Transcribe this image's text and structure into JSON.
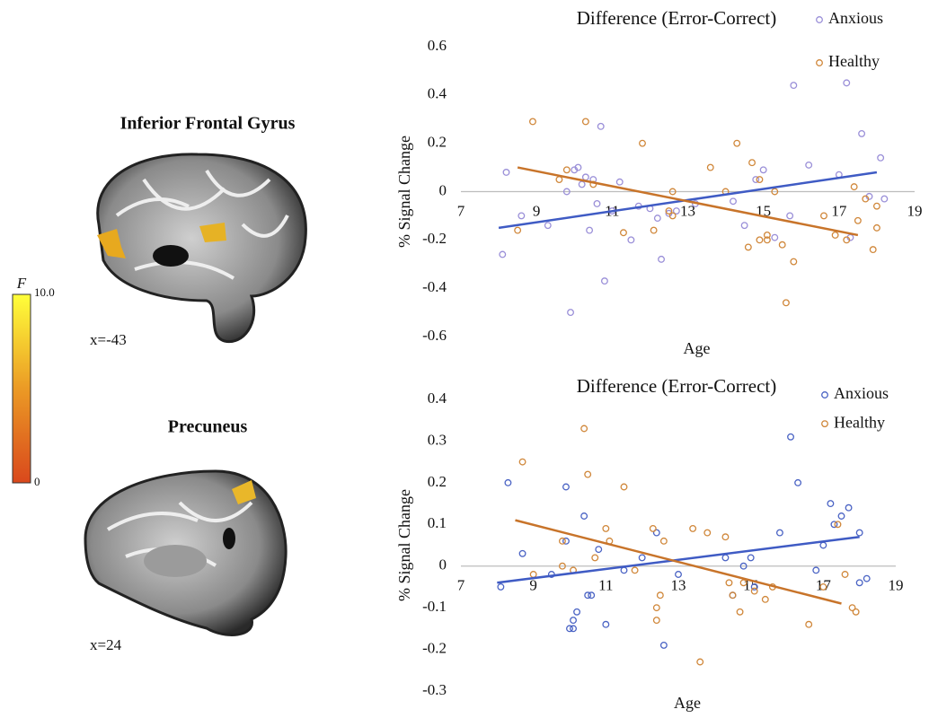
{
  "panels": [
    {
      "title": "Inferior Frontal Gyrus",
      "coord": "x=-43"
    },
    {
      "title": "Precuneus",
      "coord": "x=24"
    }
  ],
  "colorbar": {
    "label": "F",
    "max": "10.0",
    "min": "0"
  },
  "chart_data": [
    {
      "type": "scatter",
      "title": "Difference (Error-Correct)",
      "x_label": "Age",
      "y_label": "% Signal Change",
      "xlim": [
        7,
        19
      ],
      "xticks": [
        7,
        9,
        11,
        13,
        15,
        17,
        19
      ],
      "ylim": [
        -0.6,
        0.6
      ],
      "yticks": [
        0.6,
        0.4,
        0.2,
        0,
        -0.2,
        -0.4,
        -0.6
      ],
      "legend": "upper right",
      "series": [
        {
          "name": "Anxious",
          "color": "#9a8fd8",
          "x": [
            8.1,
            8.2,
            8.6,
            9.3,
            9.8,
            9.9,
            10,
            10.1,
            10.2,
            10.3,
            10.4,
            10.5,
            10.6,
            10.7,
            10.8,
            11,
            11.2,
            11.5,
            11.7,
            12,
            12.2,
            12.3,
            12.5,
            12.7,
            13.2,
            14.2,
            14.5,
            14.8,
            15,
            15.3,
            15.7,
            15.8,
            16.2,
            17,
            17.2,
            17.3,
            17.6,
            17.8,
            18.1,
            18.2
          ],
          "values": [
            -0.26,
            0.08,
            -0.1,
            -0.14,
            0.0,
            -0.5,
            0.09,
            0.1,
            0.03,
            0.06,
            -0.16,
            0.05,
            -0.05,
            0.27,
            -0.37,
            -0.08,
            0.04,
            -0.2,
            -0.06,
            -0.07,
            -0.11,
            -0.28,
            -0.09,
            -0.08,
            -0.05,
            -0.04,
            -0.14,
            0.05,
            0.09,
            -0.19,
            -0.1,
            0.44,
            0.11,
            0.07,
            0.45,
            -0.19,
            0.24,
            -0.02,
            0.14,
            -0.03
          ]
        },
        {
          "name": "Healthy",
          "color": "#d0873a",
          "x": [
            8.5,
            8.9,
            9.6,
            9.8,
            10.3,
            10.5,
            11.3,
            11.8,
            12.1,
            12.5,
            12.6,
            12.6,
            13.6,
            14,
            14.3,
            14.6,
            14.7,
            14.9,
            14.9,
            15.1,
            15.1,
            15.3,
            15.5,
            15.6,
            15.8,
            16.6,
            16.9,
            17.2,
            17.4,
            17.5,
            17.7,
            17.9,
            18,
            18
          ],
          "values": [
            -0.16,
            0.29,
            0.05,
            0.09,
            0.29,
            0.03,
            -0.17,
            0.2,
            -0.16,
            -0.08,
            -0.1,
            0.0,
            0.1,
            0.0,
            0.2,
            -0.23,
            0.12,
            -0.2,
            0.05,
            -0.18,
            -0.2,
            0.0,
            -0.22,
            -0.46,
            -0.29,
            -0.1,
            -0.18,
            -0.2,
            0.02,
            -0.12,
            -0.03,
            -0.24,
            -0.15,
            -0.06
          ]
        }
      ],
      "trendlines": [
        {
          "color": "#3f5bc4",
          "x": [
            8,
            18
          ],
          "values": [
            -0.15,
            0.08
          ]
        },
        {
          "color": "#c8742a",
          "x": [
            8.5,
            17.5
          ],
          "values": [
            0.1,
            -0.18
          ]
        }
      ]
    },
    {
      "type": "scatter",
      "title": "Difference (Error-Correct)",
      "x_label": "Age",
      "y_label": "% Signal Change",
      "xlim": [
        7,
        19
      ],
      "xticks": [
        7,
        9,
        11,
        13,
        15,
        17,
        19
      ],
      "ylim": [
        -0.3,
        0.4
      ],
      "yticks": [
        0.4,
        0.3,
        0.2,
        0.1,
        0,
        -0.1,
        -0.2,
        -0.3
      ],
      "legend": "upper right",
      "series": [
        {
          "name": "Anxious",
          "color": "#4a63c4",
          "x": [
            8.1,
            8.3,
            8.7,
            9.5,
            9.9,
            9.9,
            10,
            10.1,
            10.1,
            10.2,
            10.4,
            10.5,
            10.6,
            10.8,
            11,
            11.5,
            12,
            12.4,
            12.6,
            13,
            14.3,
            14.5,
            14.8,
            15,
            15.1,
            15.8,
            16.1,
            16.3,
            16.8,
            17,
            17.2,
            17.3,
            17.5,
            17.7,
            18,
            18,
            18.2
          ],
          "values": [
            -0.05,
            0.2,
            0.03,
            -0.02,
            0.19,
            0.06,
            -0.15,
            -0.15,
            -0.13,
            -0.11,
            0.12,
            -0.07,
            -0.07,
            0.04,
            -0.14,
            -0.01,
            0.02,
            0.08,
            -0.19,
            -0.02,
            0.02,
            -0.07,
            0.0,
            0.02,
            -0.05,
            0.08,
            0.31,
            0.2,
            -0.01,
            0.05,
            0.15,
            0.1,
            0.12,
            0.14,
            0.08,
            -0.04,
            -0.03
          ]
        },
        {
          "name": "Healthy",
          "color": "#d0873a",
          "x": [
            8.7,
            9,
            9.8,
            9.8,
            10.1,
            10.4,
            10.5,
            10.7,
            11,
            11.1,
            11.5,
            11.8,
            12.3,
            12.4,
            12.4,
            12.5,
            12.6,
            13.4,
            13.6,
            13.8,
            14.3,
            14.4,
            14.5,
            14.7,
            14.8,
            15.1,
            15.4,
            15.6,
            16.6,
            17,
            17.4,
            17.6,
            17.8,
            17.9
          ],
          "values": [
            0.25,
            -0.02,
            0.06,
            0.0,
            -0.01,
            0.33,
            0.22,
            0.02,
            0.09,
            0.06,
            0.19,
            -0.01,
            0.09,
            -0.1,
            -0.13,
            -0.07,
            0.06,
            0.09,
            -0.23,
            0.08,
            0.07,
            -0.04,
            -0.07,
            -0.11,
            -0.04,
            -0.06,
            -0.08,
            -0.05,
            -0.14,
            -0.05,
            0.1,
            -0.02,
            -0.1,
            -0.11
          ]
        }
      ],
      "trendlines": [
        {
          "color": "#3f5bc4",
          "x": [
            8,
            18
          ],
          "values": [
            -0.04,
            0.07
          ]
        },
        {
          "color": "#c8742a",
          "x": [
            8.5,
            17.5
          ],
          "values": [
            0.11,
            -0.09
          ]
        }
      ]
    }
  ]
}
